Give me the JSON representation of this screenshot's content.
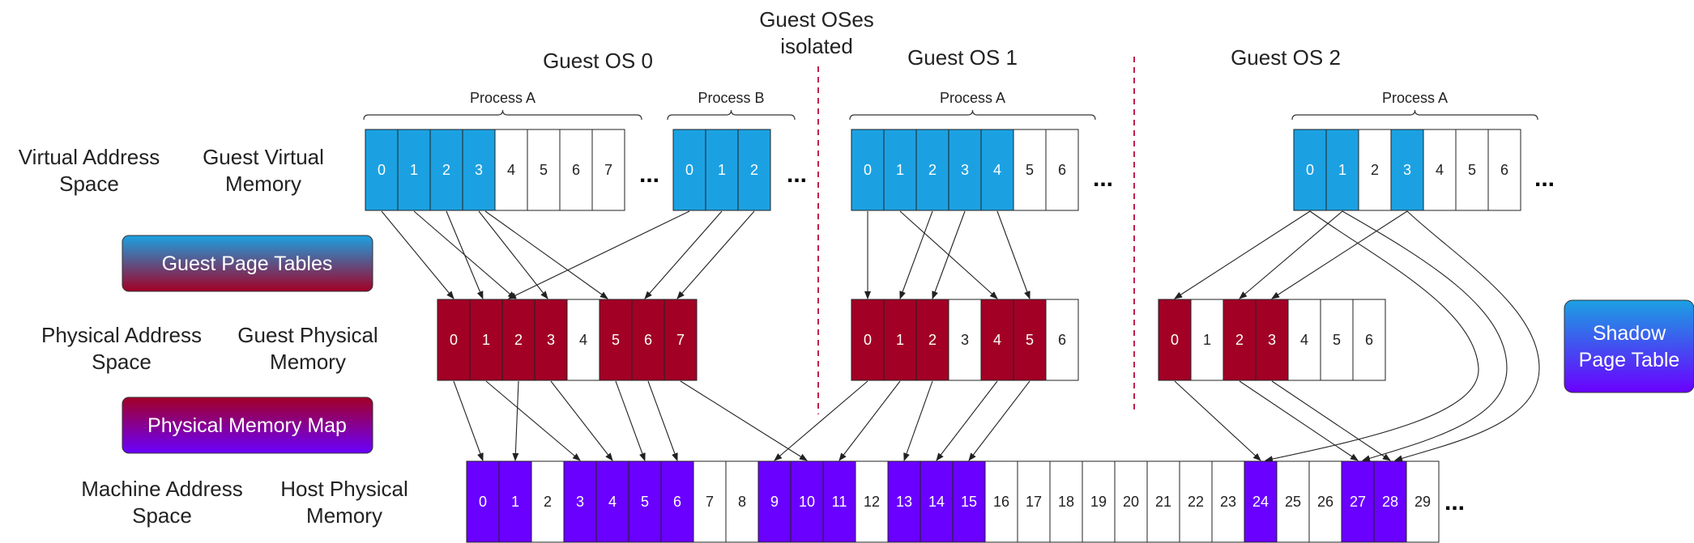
{
  "colors": {
    "virtual": "#1ba1e2",
    "guest_physical": "#a20025",
    "host_physical": "#6a00ff",
    "empty": "#ffffff",
    "separator": "#c0204a",
    "arrow": "#222222"
  },
  "titles": {
    "guest0": "Guest OS 0",
    "guest1": "Guest OS 1",
    "guest2": "Guest OS 2",
    "isolated_line1": "Guest OSes",
    "isolated_line2": "isolated"
  },
  "side_labels": {
    "vas_line1": "Virtual Address",
    "vas_line2": "Space",
    "gvm_line1": "Guest Virtual",
    "gvm_line2": "Memory",
    "pas_line1": "Physical Address",
    "pas_line2": "Space",
    "gpm_line1": "Guest Physical",
    "gpm_line2": "Memory",
    "mas_line1": "Machine Address",
    "mas_line2": "Space",
    "hpm_line1": "Host Physical",
    "hpm_line2": "Memory"
  },
  "boxes": {
    "guest_page_tables": "Guest Page Tables",
    "physical_memory_map": "Physical Memory Map",
    "shadow_line1": "Shadow",
    "shadow_line2": "Page Table"
  },
  "ellipsis": "...",
  "virtual_groups": [
    {
      "guest": 0,
      "process": "Process A",
      "cells": [
        "0",
        "1",
        "2",
        "3",
        "4",
        "5",
        "6",
        "7"
      ],
      "filled": [
        0,
        1,
        2,
        3
      ]
    },
    {
      "guest": 0,
      "process": "Process B",
      "cells": [
        "0",
        "1",
        "2"
      ],
      "filled": [
        0,
        1,
        2
      ]
    },
    {
      "guest": 1,
      "process": "Process A",
      "cells": [
        "0",
        "1",
        "2",
        "3",
        "4",
        "5",
        "6"
      ],
      "filled": [
        0,
        1,
        2,
        3,
        4
      ]
    },
    {
      "guest": 2,
      "process": "Process A",
      "cells": [
        "0",
        "1",
        "2",
        "3",
        "4",
        "5",
        "6"
      ],
      "filled": [
        0,
        1,
        3
      ]
    }
  ],
  "guest_physical": [
    {
      "guest": 0,
      "cells": [
        "0",
        "1",
        "2",
        "3",
        "4",
        "5",
        "6",
        "7"
      ],
      "filled": [
        0,
        1,
        2,
        3,
        5,
        6,
        7
      ]
    },
    {
      "guest": 1,
      "cells": [
        "0",
        "1",
        "2",
        "3",
        "4",
        "5",
        "6"
      ],
      "filled": [
        0,
        1,
        2,
        4,
        5
      ]
    },
    {
      "guest": 2,
      "cells": [
        "0",
        "1",
        "2",
        "3",
        "4",
        "5",
        "6"
      ],
      "filled": [
        0,
        2,
        3
      ]
    }
  ],
  "host_physical": {
    "cells": [
      "0",
      "1",
      "2",
      "3",
      "4",
      "5",
      "6",
      "7",
      "8",
      "9",
      "10",
      "11",
      "12",
      "13",
      "14",
      "15",
      "16",
      "17",
      "18",
      "19",
      "20",
      "21",
      "22",
      "23",
      "24",
      "25",
      "26",
      "27",
      "28",
      "29"
    ],
    "filled": [
      0,
      1,
      3,
      4,
      5,
      6,
      9,
      10,
      11,
      13,
      14,
      15,
      24,
      27,
      28
    ]
  }
}
